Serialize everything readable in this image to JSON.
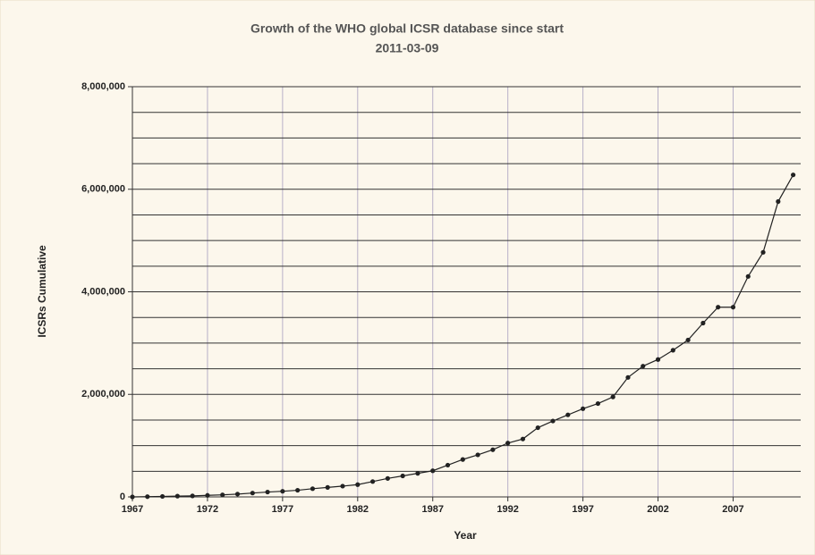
{
  "chart_data": {
    "type": "line",
    "title": "Growth of the WHO global ICSR database since start",
    "subtitle": "2011-03-09",
    "x_label": "Year",
    "y_label": "ICSRs Cumulative",
    "x": [
      1967,
      1968,
      1969,
      1970,
      1971,
      1972,
      1973,
      1974,
      1975,
      1976,
      1977,
      1978,
      1979,
      1980,
      1981,
      1982,
      1983,
      1984,
      1985,
      1986,
      1987,
      1988,
      1989,
      1990,
      1991,
      1992,
      1993,
      1994,
      1995,
      1996,
      1997,
      1998,
      1999,
      2000,
      2001,
      2002,
      2003,
      2004,
      2005,
      2006,
      2007,
      2008,
      2009,
      2010,
      2011
    ],
    "series": [
      {
        "name": "ICSRs Cumulative",
        "color": "#222222",
        "values": [
          0,
          5000,
          10000,
          15000,
          20000,
          30000,
          40000,
          55000,
          75000,
          95000,
          110000,
          130000,
          160000,
          185000,
          210000,
          240000,
          300000,
          360000,
          410000,
          460000,
          510000,
          620000,
          730000,
          820000,
          920000,
          1050000,
          1130000,
          1350000,
          1480000,
          1600000,
          1720000,
          1820000,
          1950000,
          2330000,
          2550000,
          2680000,
          2860000,
          3060000,
          3390000,
          3700000,
          3700000,
          4300000,
          4770000,
          5760000,
          6280000
        ]
      }
    ],
    "xlim": [
      1967,
      2011.5
    ],
    "ylim": [
      0,
      8000000
    ],
    "xticks": [
      1967,
      1972,
      1977,
      1982,
      1987,
      1992,
      1997,
      2002,
      2007
    ],
    "yticks": [
      0,
      {
        "value": 2000000,
        "label": "2,000,000"
      },
      {
        "value": 4000000,
        "label": "4,000,000"
      },
      {
        "value": 6000000,
        "label": "6,000,000"
      },
      {
        "value": 8000000,
        "label": "8,000,000"
      }
    ],
    "ygrid": [
      500000,
      1000000,
      1500000,
      2000000,
      2500000,
      3000000,
      3500000,
      4000000,
      4500000,
      5000000,
      5500000,
      6000000,
      6500000,
      7000000,
      7500000,
      8000000
    ],
    "grid": true
  }
}
